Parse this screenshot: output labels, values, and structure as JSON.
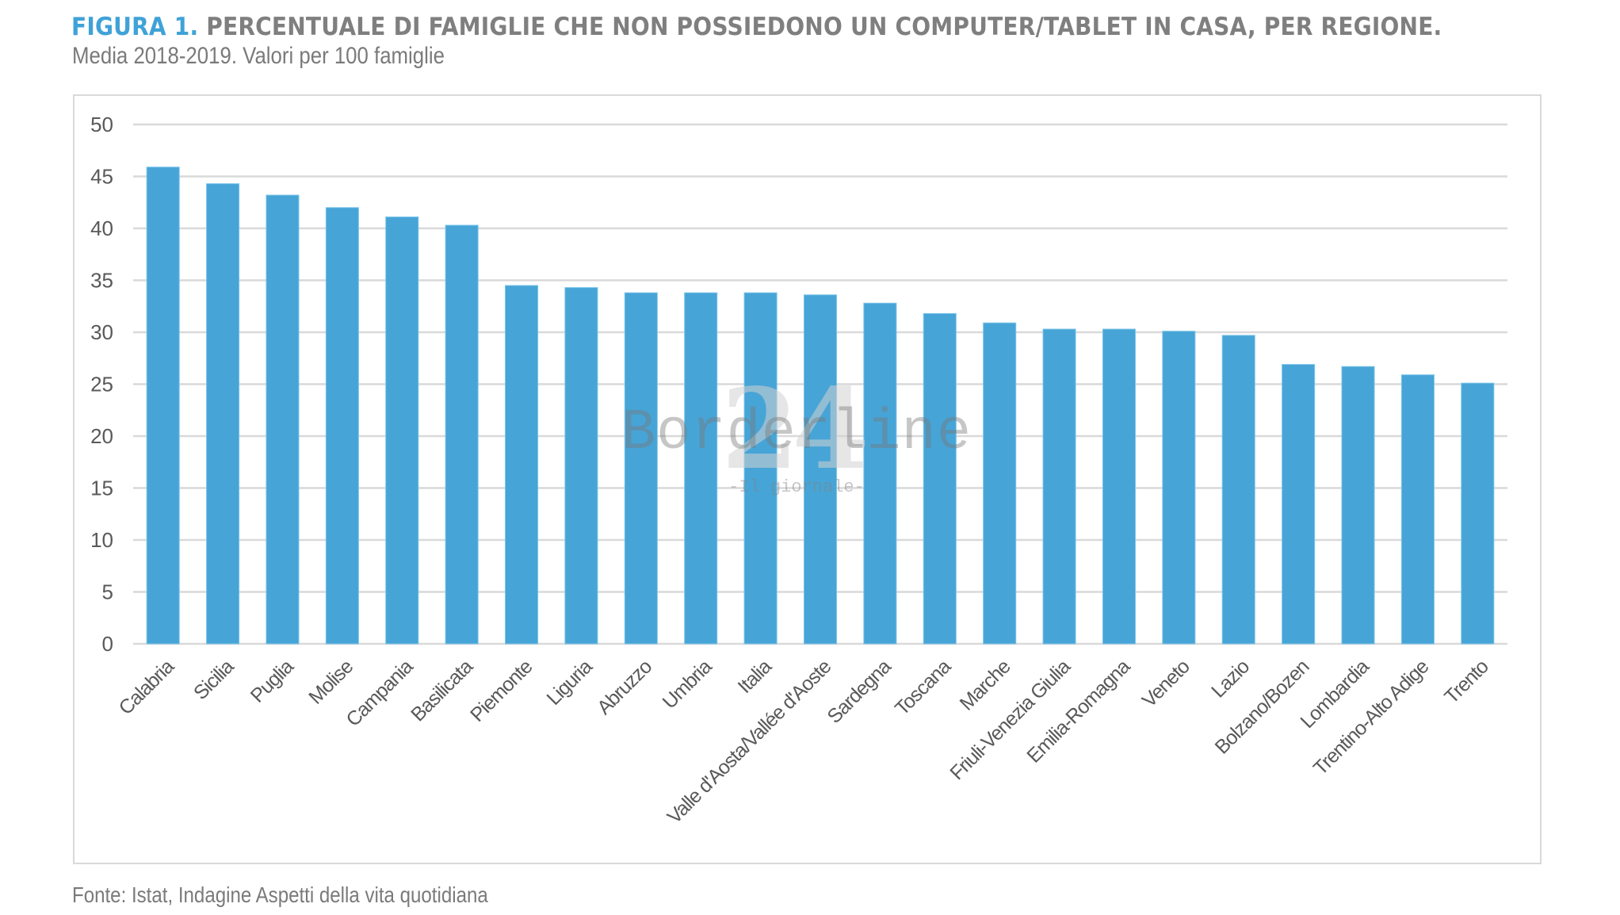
{
  "figure": {
    "label": "FIGURA 1.",
    "title": " PERCENTUALE DI FAMIGLIE CHE NON POSSIEDONO UN COMPUTER/TABLET IN CASA, PER REGIONE.",
    "subtitle": "Media 2018-2019. Valori per 100 famiglie",
    "source": "Fonte: Istat, Indagine Aspetti della vita quotidiana"
  },
  "watermark": {
    "number": "24",
    "name": "Borderline",
    "tagline": "-Il giornale-"
  },
  "colors": {
    "label_accent": "#3fa2d8",
    "title_gray": "#7f7f7f",
    "bar": "#47a4d6",
    "bar_edge": "#7dc6ea",
    "grid": "#d9d9d9",
    "axis_text": "#595959"
  },
  "chart_data": {
    "type": "bar",
    "title": "PERCENTUALE DI FAMIGLIE CHE NON POSSIEDONO UN COMPUTER/TABLET IN CASA, PER REGIONE.",
    "subtitle": "Media 2018-2019. Valori per 100 famiglie",
    "xlabel": "",
    "ylabel": "",
    "ylim": [
      0,
      50
    ],
    "yticks": [
      0,
      5,
      10,
      15,
      20,
      25,
      30,
      35,
      40,
      45,
      50
    ],
    "grid": true,
    "legend": "none",
    "x_label_rotation": -45,
    "categories": [
      "Calabria",
      "Sicilia",
      "Puglia",
      "Molise",
      "Campania",
      "Basilicata",
      "Piemonte",
      "Liguria",
      "Abruzzo",
      "Umbria",
      "Italia",
      "Valle d'Aosta/Vallée d'Aoste",
      "Sardegna",
      "Toscana",
      "Marche",
      "Friuli-Venezia Giulia",
      "Emilia-Romagna",
      "Veneto",
      "Lazio",
      "Bolzano/Bozen",
      "Lombardia",
      "Trentino-Alto Adige",
      "Trento"
    ],
    "values": [
      45.9,
      44.3,
      43.2,
      42.0,
      41.1,
      40.3,
      34.5,
      34.3,
      33.8,
      33.8,
      33.8,
      33.6,
      32.8,
      31.8,
      30.9,
      30.3,
      30.3,
      30.1,
      29.7,
      26.9,
      26.7,
      25.9,
      25.1
    ]
  }
}
